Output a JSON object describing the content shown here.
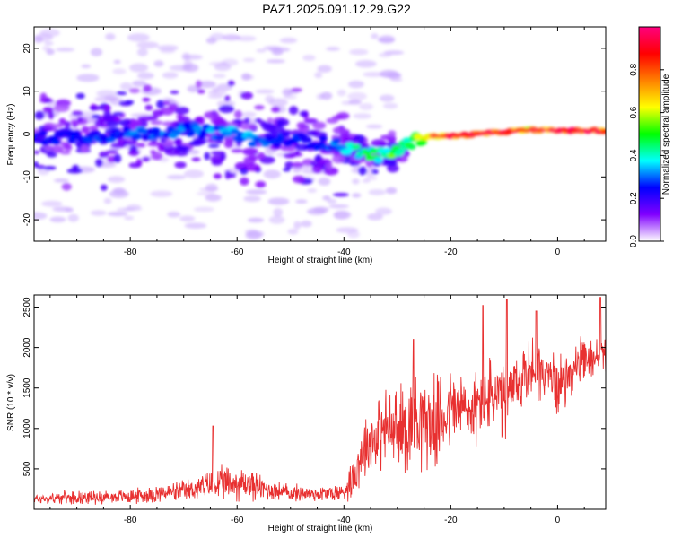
{
  "title": "PAZ1.2025.091.12.29.G22",
  "chart_data": [
    {
      "type": "heatmap",
      "xlabel": "Height of straight line (km)",
      "ylabel": "Frequency (Hz)",
      "xlim": [
        -98,
        9
      ],
      "ylim": [
        -25,
        25
      ],
      "xticks": [
        "-80",
        "-60",
        "-40",
        "-20",
        "0"
      ],
      "xtick_values": [
        -80,
        -60,
        -40,
        -20,
        0
      ],
      "yticks": [
        "20",
        "10",
        "0",
        "-10",
        "-20"
      ],
      "ytick_values": [
        20,
        10,
        0,
        -10,
        -20
      ],
      "colorbar": {
        "label": "Normalized spectral amplitude",
        "range": [
          0,
          1
        ],
        "ticks": [
          "0.0",
          "0.2",
          "0.4",
          "0.6",
          "0.8"
        ],
        "tick_values": [
          0,
          0.2,
          0.4,
          0.6,
          0.8
        ],
        "colormap": [
          "#ffffff",
          "#8000ff",
          "#0000ff",
          "#00ffff",
          "#00ff00",
          "#ffff00",
          "#ff8000",
          "#ff0000",
          "#ff0080"
        ]
      },
      "ridge": {
        "x": [
          -98,
          -90,
          -80,
          -70,
          -60,
          -55,
          -50,
          -45,
          -40,
          -36,
          -33,
          -30,
          -27,
          -24,
          -20,
          -15,
          -10,
          -5,
          0,
          9
        ],
        "frequency": [
          -1,
          -0.5,
          0,
          1,
          0,
          -2,
          -1,
          -2,
          -3,
          -4.5,
          -5,
          -4,
          -1.5,
          -0.5,
          -0.5,
          0,
          0.5,
          1,
          0.8,
          0.8
        ],
        "amplitude": [
          0.25,
          0.25,
          0.3,
          0.3,
          0.35,
          0.3,
          0.25,
          0.25,
          0.35,
          0.45,
          0.45,
          0.55,
          0.5,
          0.7,
          0.85,
          0.9,
          0.85,
          0.75,
          0.9,
          0.9
        ]
      },
      "colors": {
        "background": "#ffffff",
        "scatter": "#c8a8ff",
        "mid": "#8a2be2"
      }
    },
    {
      "type": "line",
      "xlabel": "Height of straight line (km)",
      "ylabel": "SNR (10 * v/v)",
      "xlim": [
        -98,
        9
      ],
      "ylim": [
        0,
        2650
      ],
      "xticks": [
        "-80",
        "-60",
        "-40",
        "-20",
        "0"
      ],
      "xtick_values": [
        -80,
        -60,
        -40,
        -20,
        0
      ],
      "yticks": [
        "500",
        "1000",
        "1500",
        "2000",
        "2500"
      ],
      "ytick_values": [
        500,
        1000,
        1500,
        2000,
        2500
      ],
      "series": [
        {
          "color": "#e83030",
          "x": [
            -98,
            -95,
            -90,
            -85,
            -80,
            -75,
            -70,
            -65,
            -62,
            -60,
            -57,
            -55,
            -50,
            -45,
            -42,
            -40,
            -38,
            -36,
            -34,
            -32,
            -30,
            -28,
            -26,
            -24,
            -22,
            -20,
            -18,
            -16,
            -14,
            -12,
            -10,
            -8,
            -6,
            -4,
            -2,
            0,
            2,
            4,
            6,
            9
          ],
          "mean": [
            130,
            140,
            150,
            150,
            160,
            190,
            220,
            300,
            310,
            320,
            300,
            250,
            200,
            190,
            200,
            210,
            450,
            800,
            900,
            1000,
            950,
            1050,
            1200,
            1050,
            1100,
            1250,
            1250,
            1200,
            1350,
            1400,
            1300,
            1500,
            1700,
            1750,
            1650,
            1550,
            1650,
            1800,
            1850,
            1950
          ],
          "noise": [
            60,
            70,
            80,
            80,
            90,
            110,
            130,
            180,
            220,
            220,
            200,
            150,
            110,
            100,
            110,
            120,
            300,
            400,
            450,
            500,
            550,
            600,
            650,
            550,
            550,
            500,
            500,
            450,
            450,
            500,
            500,
            450,
            400,
            400,
            350,
            350,
            300,
            300,
            250,
            250
          ],
          "peaks": [
            {
              "x": -64.5,
              "y": 1030
            },
            {
              "x": -27.0,
              "y": 2100
            },
            {
              "x": -14.0,
              "y": 2520
            },
            {
              "x": -9.5,
              "y": 2600
            },
            {
              "x": -4.0,
              "y": 2450
            },
            {
              "x": 8.0,
              "y": 2620
            }
          ]
        }
      ]
    }
  ]
}
